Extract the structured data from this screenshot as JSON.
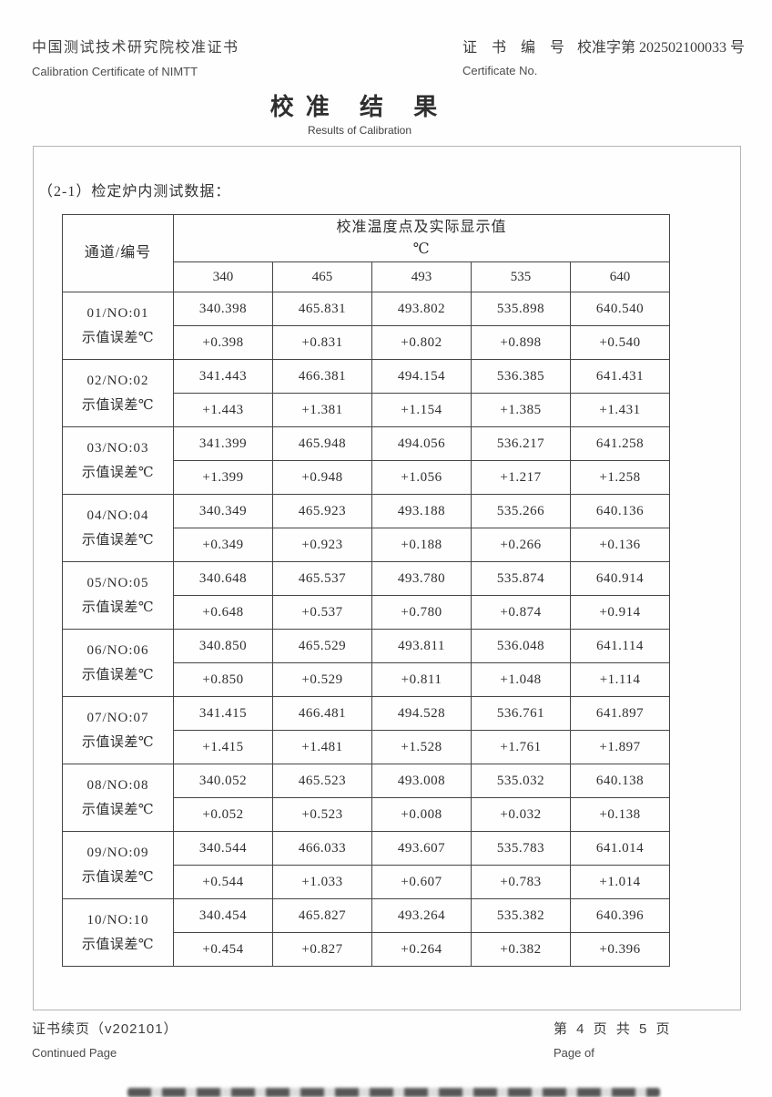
{
  "page": {
    "header": {
      "org_cn": "中国测试技术研究院校准证书",
      "org_en": "Calibration Certificate of NIMTT",
      "cert_no_label_cn": "证 书 编 号",
      "cert_no_value": "校准字第 202502100033 号",
      "cert_no_label_en": "Certificate No."
    },
    "title_cn": "校准 结 果",
    "title_en": "Results of Calibration",
    "section_heading": "（2-1）检定炉内测试数据：",
    "footer": {
      "left_cn": "证书续页（v202101）",
      "left_en": "Continued Page",
      "right_cn": "第 4 页 共 5 页",
      "right_en": "Page of"
    }
  },
  "table": {
    "channel_header": "通道/编号",
    "span_header_line1": "校准温度点及实际显示值",
    "span_header_line2": "℃",
    "temperatures": [
      "340",
      "465",
      "493",
      "535",
      "640"
    ],
    "error_label": "示值误差℃",
    "rows": [
      {
        "channel": "01/NO:01",
        "values": [
          "340.398",
          "465.831",
          "493.802",
          "535.898",
          "640.540"
        ],
        "errors": [
          "+0.398",
          "+0.831",
          "+0.802",
          "+0.898",
          "+0.540"
        ]
      },
      {
        "channel": "02/NO:02",
        "values": [
          "341.443",
          "466.381",
          "494.154",
          "536.385",
          "641.431"
        ],
        "errors": [
          "+1.443",
          "+1.381",
          "+1.154",
          "+1.385",
          "+1.431"
        ]
      },
      {
        "channel": "03/NO:03",
        "values": [
          "341.399",
          "465.948",
          "494.056",
          "536.217",
          "641.258"
        ],
        "errors": [
          "+1.399",
          "+0.948",
          "+1.056",
          "+1.217",
          "+1.258"
        ]
      },
      {
        "channel": "04/NO:04",
        "values": [
          "340.349",
          "465.923",
          "493.188",
          "535.266",
          "640.136"
        ],
        "errors": [
          "+0.349",
          "+0.923",
          "+0.188",
          "+0.266",
          "+0.136"
        ]
      },
      {
        "channel": "05/NO:05",
        "values": [
          "340.648",
          "465.537",
          "493.780",
          "535.874",
          "640.914"
        ],
        "errors": [
          "+0.648",
          "+0.537",
          "+0.780",
          "+0.874",
          "+0.914"
        ]
      },
      {
        "channel": "06/NO:06",
        "values": [
          "340.850",
          "465.529",
          "493.811",
          "536.048",
          "641.114"
        ],
        "errors": [
          "+0.850",
          "+0.529",
          "+0.811",
          "+1.048",
          "+1.114"
        ]
      },
      {
        "channel": "07/NO:07",
        "values": [
          "341.415",
          "466.481",
          "494.528",
          "536.761",
          "641.897"
        ],
        "errors": [
          "+1.415",
          "+1.481",
          "+1.528",
          "+1.761",
          "+1.897"
        ]
      },
      {
        "channel": "08/NO:08",
        "values": [
          "340.052",
          "465.523",
          "493.008",
          "535.032",
          "640.138"
        ],
        "errors": [
          "+0.052",
          "+0.523",
          "+0.008",
          "+0.032",
          "+0.138"
        ]
      },
      {
        "channel": "09/NO:09",
        "values": [
          "340.544",
          "466.033",
          "493.607",
          "535.783",
          "641.014"
        ],
        "errors": [
          "+0.544",
          "+1.033",
          "+0.607",
          "+0.783",
          "+1.014"
        ]
      },
      {
        "channel": "10/NO:10",
        "values": [
          "340.454",
          "465.827",
          "493.264",
          "535.382",
          "640.396"
        ],
        "errors": [
          "+0.454",
          "+0.827",
          "+0.264",
          "+0.382",
          "+0.396"
        ]
      }
    ]
  }
}
